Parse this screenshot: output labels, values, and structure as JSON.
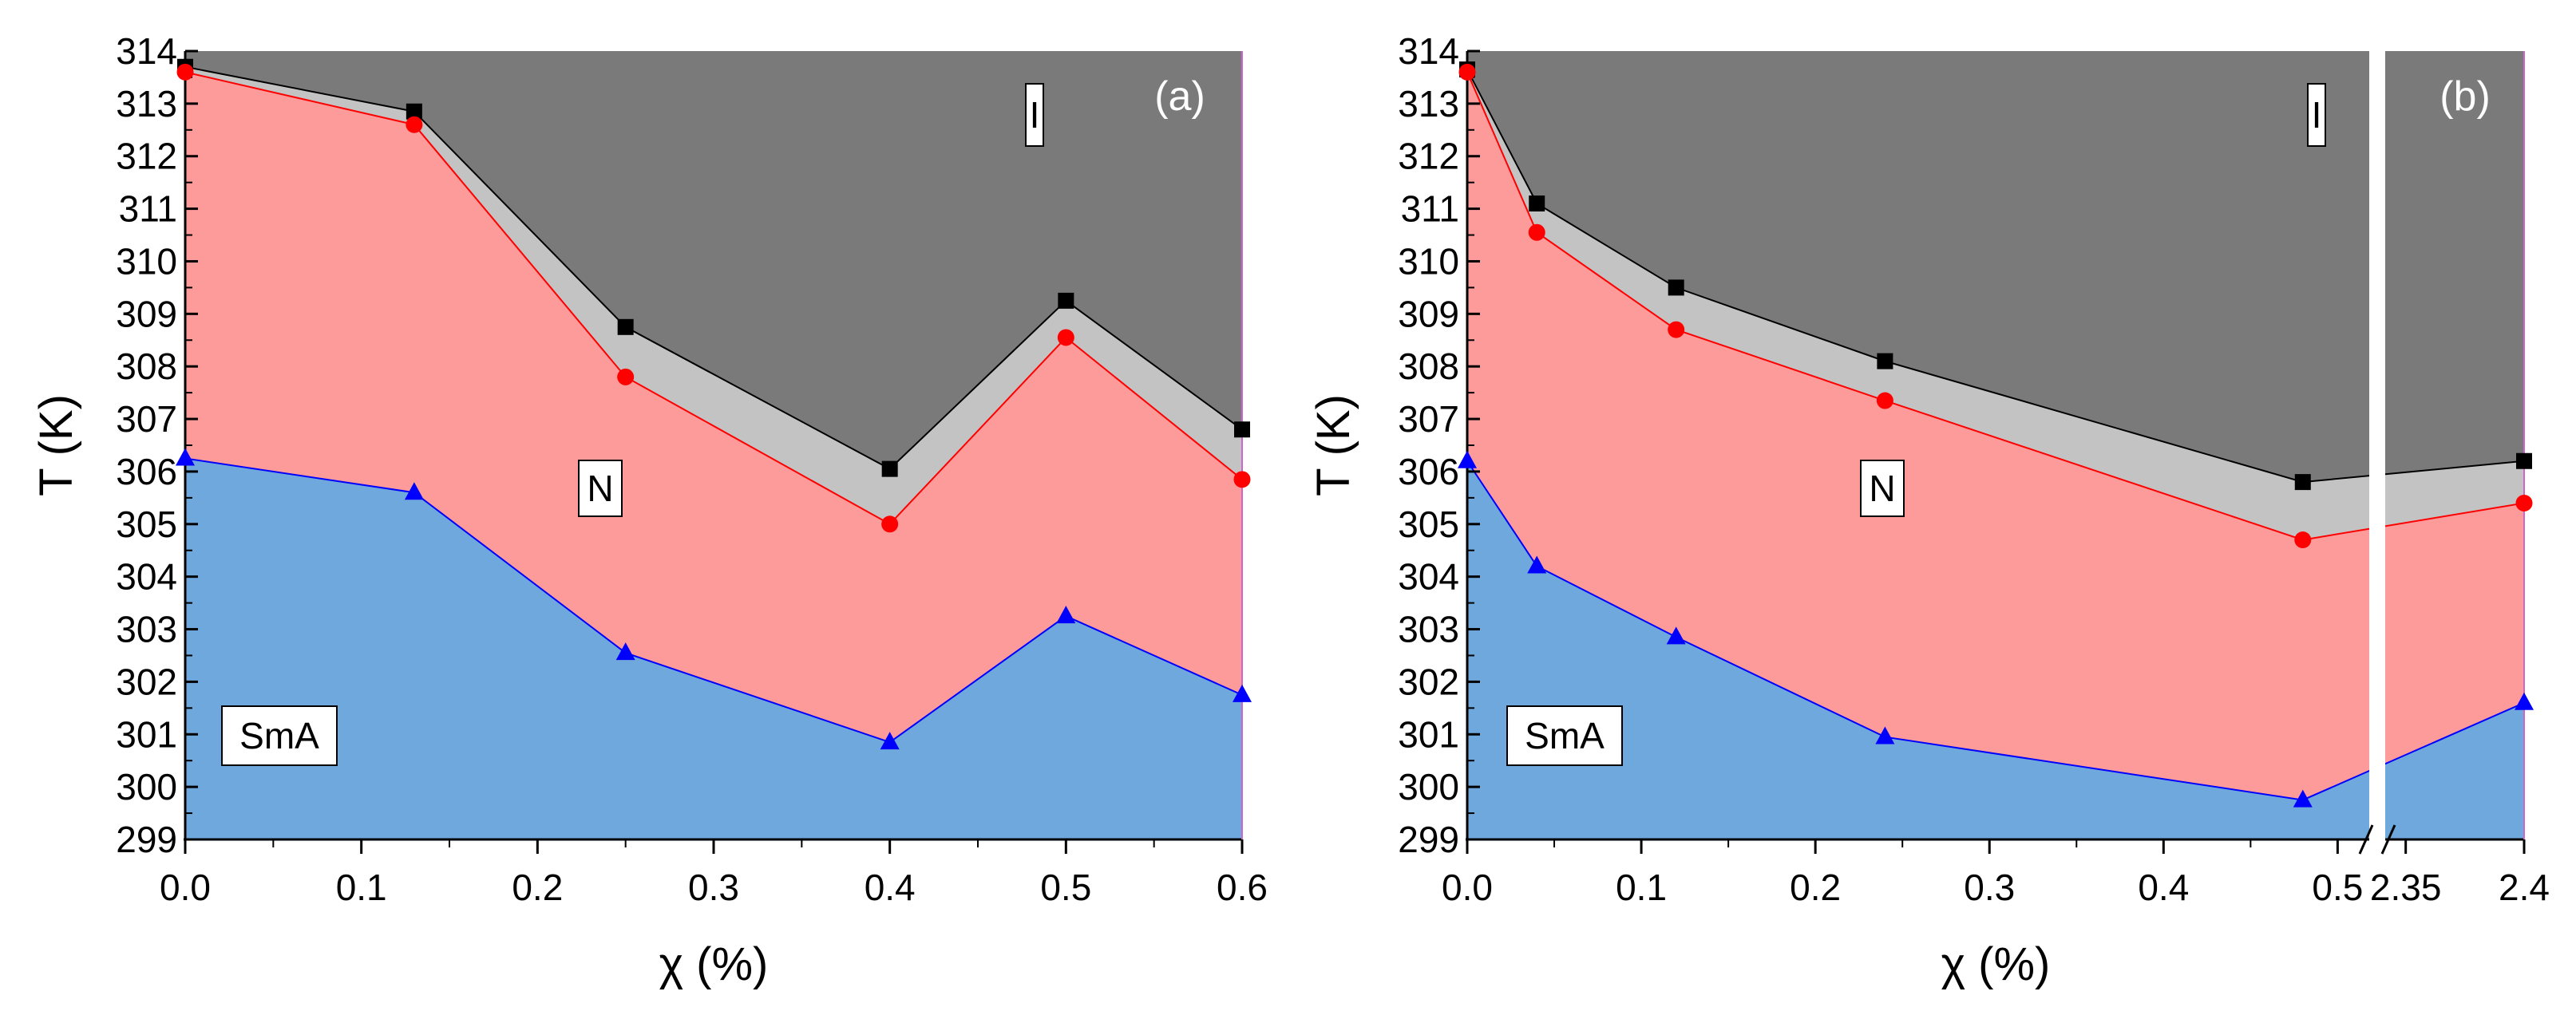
{
  "chart_data": [
    {
      "type": "area",
      "panel_label": "(a)",
      "xlabel": "χ (%)",
      "ylabel": "T (K)",
      "xlim": [
        0,
        0.6
      ],
      "ylim": [
        299,
        314
      ],
      "x_ticks": [
        "0.0",
        "0.1",
        "0.2",
        "0.3",
        "0.4",
        "0.5",
        "0.6"
      ],
      "y_ticks": [
        "299",
        "300",
        "301",
        "302",
        "303",
        "304",
        "305",
        "306",
        "307",
        "308",
        "309",
        "310",
        "311",
        "312",
        "313",
        "314"
      ],
      "x": [
        0,
        0.13,
        0.25,
        0.4,
        0.5,
        0.6
      ],
      "series": [
        {
          "name": "I-N upper boundary",
          "marker": "square",
          "color": "#000000",
          "values": [
            313.7,
            312.85,
            308.75,
            306.05,
            309.25,
            306.8
          ]
        },
        {
          "name": "N-I lower boundary",
          "marker": "circle",
          "color": "#ff0000",
          "values": [
            313.6,
            312.6,
            307.8,
            305.0,
            308.55,
            305.85
          ]
        },
        {
          "name": "SmA-N boundary",
          "marker": "triangle",
          "color": "#0000ff",
          "values": [
            306.25,
            305.6,
            302.55,
            300.85,
            303.25,
            301.75
          ]
        }
      ],
      "region_labels": {
        "isotropic": "I",
        "nematic": "N",
        "smectic": "SmA"
      }
    },
    {
      "type": "area",
      "panel_label": "(b)",
      "xlabel": "χ (%)",
      "ylabel": "T (K)",
      "xlim_segments": [
        [
          0,
          0.52
        ],
        [
          2.34,
          2.4
        ]
      ],
      "ylim": [
        299,
        314
      ],
      "x_ticks": [
        "0.0",
        "0.1",
        "0.2",
        "0.3",
        "0.4",
        "0.5",
        "2.35",
        "2.4"
      ],
      "y_ticks": [
        "299",
        "300",
        "301",
        "302",
        "303",
        "304",
        "305",
        "306",
        "307",
        "308",
        "309",
        "310",
        "311",
        "312",
        "313",
        "314"
      ],
      "x": [
        0,
        0.04,
        0.12,
        0.24,
        0.48,
        2.4
      ],
      "series": [
        {
          "name": "I-N upper boundary",
          "marker": "square",
          "color": "#000000",
          "values": [
            313.65,
            311.1,
            309.5,
            308.1,
            305.8,
            306.2
          ]
        },
        {
          "name": "N-I lower boundary",
          "marker": "circle",
          "color": "#ff0000",
          "values": [
            313.6,
            310.55,
            308.7,
            307.35,
            304.7,
            305.4
          ]
        },
        {
          "name": "SmA-N boundary",
          "marker": "triangle",
          "color": "#0000ff",
          "values": [
            306.2,
            304.2,
            302.85,
            300.95,
            299.75,
            301.6
          ]
        }
      ],
      "region_labels": {
        "isotropic": "I",
        "nematic": "N",
        "smectic": "SmA"
      }
    }
  ],
  "colors": {
    "isotropic_fill": "#7a7a7a",
    "biphasic_fill": "#c3c3c3",
    "nematic_fill": "#fd9b9b",
    "smectic_fill": "#6fa8dc",
    "upper_line": "#000000",
    "middle_line": "#ff0000",
    "lower_line": "#0000ff",
    "axis_right_line": "#cc66cc"
  }
}
